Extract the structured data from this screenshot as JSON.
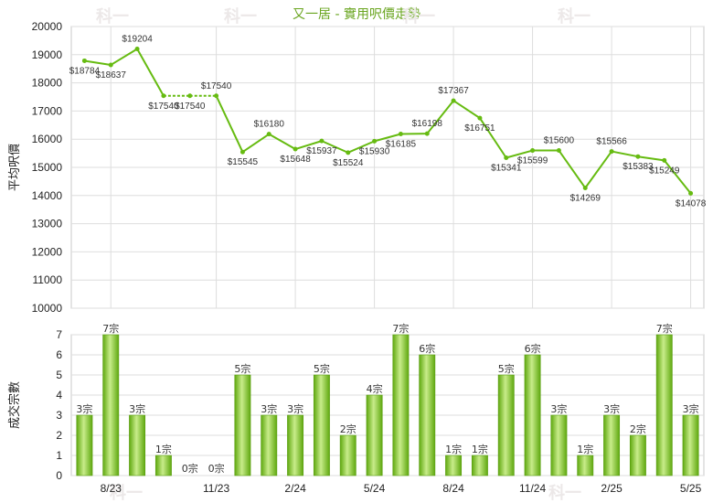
{
  "chart_data": [
    {
      "type": "line",
      "title": "又一居 - 實用呎價走勢",
      "ylabel": "平均呎價",
      "ylim": [
        10000,
        20000
      ],
      "yticks": [
        10000,
        11000,
        12000,
        13000,
        14000,
        15000,
        16000,
        17000,
        18000,
        19000,
        20000
      ],
      "color": "#66bb11",
      "series": [
        {
          "values": [
            18784,
            18637,
            19204,
            17540,
            17540,
            17540,
            15545,
            16180,
            15648,
            15937,
            15524,
            15930,
            16185,
            16198,
            17367,
            16751,
            15341,
            15599,
            15600,
            14269,
            15566,
            15383,
            15249,
            14078
          ],
          "labels": [
            "$18784",
            "$18637",
            "$19204",
            "$17540",
            "$17540",
            "$17540",
            "$15545",
            "$16180",
            "$15648",
            "$15937",
            "$15524",
            "$15930",
            "$16185",
            "$16198",
            "$17367",
            "$16751",
            "$15341",
            "$15599",
            "$15600",
            "$14269",
            "$15566",
            "$15383",
            "$15249",
            "$14078"
          ]
        }
      ]
    },
    {
      "type": "bar",
      "ylabel": "成交宗數",
      "ylim": [
        0,
        7
      ],
      "yticks": [
        0,
        1,
        2,
        3,
        4,
        5,
        6,
        7
      ],
      "categories": [
        "",
        "8/23",
        "",
        "",
        "",
        "11/23",
        "",
        "",
        "2/24",
        "",
        "",
        "5/24",
        "",
        "",
        "8/24",
        "",
        "",
        "11/24",
        "",
        "",
        "2/25",
        "",
        "",
        "5/25"
      ],
      "xticks": [
        "8/23",
        "11/23",
        "2/24",
        "5/24",
        "8/24",
        "11/24",
        "2/25",
        "5/25"
      ],
      "values": [
        3,
        7,
        3,
        1,
        0,
        0,
        5,
        3,
        3,
        5,
        2,
        4,
        7,
        6,
        1,
        1,
        5,
        6,
        3,
        1,
        3,
        2,
        7,
        3
      ],
      "labels": [
        "3宗",
        "7宗",
        "3宗",
        "1宗",
        "0宗",
        "0宗",
        "5宗",
        "3宗",
        "3宗",
        "5宗",
        "2宗",
        "4宗",
        "7宗",
        "6宗",
        "1宗",
        "1宗",
        "5宗",
        "6宗",
        "3宗",
        "1宗",
        "3宗",
        "2宗",
        "7宗",
        "3宗"
      ],
      "color": "#88c93a"
    }
  ],
  "watermark": "科一"
}
